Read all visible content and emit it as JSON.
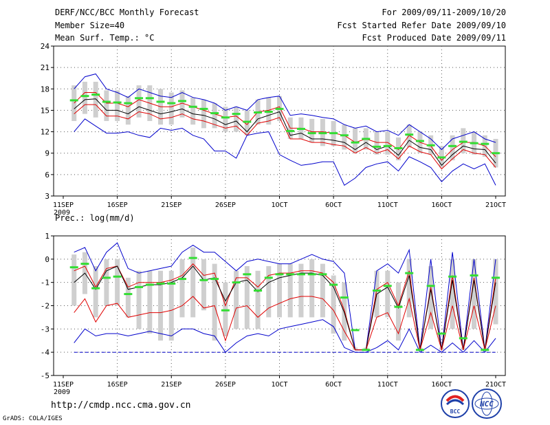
{
  "header": {
    "title": "DERF/NCC/BCC Monthly Forecast",
    "member_size": "Member Size=40",
    "variable1": "Mean Surf. Temp.: °C",
    "period": "For 2009/09/11-2009/10/20",
    "started": "Fcst Started Refer Date 2009/09/10",
    "produced": "Fcst Produced Date 2009/09/11"
  },
  "footer": {
    "url": "http://cmdp.ncc.cma.gov.cn",
    "credit": "GrADS: COLA/IGES",
    "logo_bcc": "BCC",
    "logo_ncc": "NCC"
  },
  "colors": {
    "box": "#cfcfcf",
    "mean": "#000000",
    "spread": "#e00000",
    "extreme": "#0000cc",
    "median": "#33dd33"
  },
  "chart_data": [
    {
      "type": "line",
      "title": "Mean Surf. Temp.: °C",
      "xlabel": "",
      "ylabel": "°C",
      "xlim": [
        0,
        40
      ],
      "ylim": [
        3,
        24
      ],
      "yticks": [
        3,
        6,
        9,
        12,
        15,
        18,
        21,
        24
      ],
      "x_ticks": [
        {
          "day": 0,
          "label": "11SEP",
          "sublabel": "2009"
        },
        {
          "day": 5,
          "label": "16SEP"
        },
        {
          "day": 10,
          "label": "21SEP"
        },
        {
          "day": 15,
          "label": "26SEP"
        },
        {
          "day": 20,
          "label": "1OCT"
        },
        {
          "day": 25,
          "label": "6OCT"
        },
        {
          "day": 30,
          "label": "11OCT"
        },
        {
          "day": 35,
          "label": "16OCT"
        },
        {
          "day": 40,
          "label": "21OCT"
        }
      ],
      "series": [
        {
          "name": "max",
          "values": [
            18.0,
            19.7,
            20.1,
            18.0,
            17.5,
            16.8,
            18.0,
            17.5,
            17.0,
            16.8,
            17.5,
            16.8,
            16.5,
            16.0,
            15.0,
            15.5,
            15.0,
            16.5,
            16.8,
            17.0,
            14.3,
            14.5,
            14.3,
            14.0,
            13.8,
            13.0,
            12.5,
            12.8,
            12.0,
            12.2,
            11.5,
            13.0,
            12.0,
            11.0,
            9.5,
            11.0,
            11.5,
            12.0,
            11.0,
            10.5
          ]
        },
        {
          "name": "upper",
          "values": [
            16.0,
            17.5,
            17.5,
            16.0,
            16.0,
            15.5,
            16.5,
            16.0,
            15.5,
            15.5,
            16.0,
            15.5,
            15.0,
            14.5,
            14.0,
            14.2,
            13.0,
            14.8,
            15.0,
            15.5,
            12.5,
            12.5,
            12.0,
            12.0,
            11.8,
            11.5,
            10.5,
            11.0,
            10.5,
            10.5,
            9.5,
            11.5,
            10.5,
            10.0,
            8.0,
            9.5,
            10.5,
            10.5,
            10.0,
            8.5
          ]
        },
        {
          "name": "mean",
          "values": [
            15.2,
            16.5,
            16.6,
            15.0,
            15.0,
            14.5,
            15.5,
            15.0,
            14.5,
            14.8,
            15.2,
            14.5,
            14.3,
            13.8,
            13.0,
            13.5,
            12.0,
            13.8,
            14.3,
            14.8,
            11.5,
            11.8,
            11.0,
            11.0,
            10.8,
            10.5,
            9.5,
            10.5,
            9.5,
            10.0,
            8.7,
            10.8,
            9.8,
            9.5,
            7.3,
            8.8,
            10.0,
            9.6,
            9.5,
            7.6
          ]
        },
        {
          "name": "lower",
          "values": [
            14.5,
            15.8,
            15.8,
            14.2,
            14.2,
            13.8,
            14.8,
            14.5,
            13.8,
            14.0,
            14.5,
            13.8,
            13.5,
            13.0,
            12.5,
            12.8,
            11.5,
            13.2,
            13.5,
            14.0,
            11.0,
            11.0,
            10.5,
            10.5,
            10.2,
            10.0,
            9.0,
            9.8,
            9.0,
            9.5,
            8.2,
            10.0,
            9.2,
            8.8,
            6.8,
            8.2,
            9.5,
            9.0,
            8.8,
            7.0
          ]
        },
        {
          "name": "min",
          "values": [
            12.0,
            13.8,
            12.8,
            11.8,
            11.8,
            12.0,
            11.5,
            11.2,
            12.5,
            12.2,
            12.5,
            11.5,
            11.0,
            9.3,
            9.3,
            8.3,
            11.5,
            11.8,
            12.0,
            8.8,
            8.0,
            7.3,
            7.5,
            7.8,
            7.8,
            4.5,
            5.5,
            7.0,
            7.5,
            7.8,
            6.5,
            8.5,
            7.8,
            7.0,
            5.0,
            6.5,
            7.5,
            6.8,
            7.5,
            4.5
          ]
        },
        {
          "name": "median",
          "values": [
            16.4,
            17.0,
            17.2,
            16.2,
            16.1,
            16.0,
            16.7,
            16.7,
            16.2,
            16.0,
            16.3,
            15.5,
            15.2,
            14.6,
            14.0,
            14.5,
            13.4,
            14.7,
            14.8,
            15.2,
            12.1,
            12.4,
            11.8,
            11.8,
            11.8,
            11.5,
            10.5,
            11.0,
            9.9,
            10.0,
            9.7,
            11.6,
            10.7,
            10.1,
            8.4,
            10.0,
            10.6,
            10.4,
            10.3,
            9.0
          ]
        }
      ],
      "box": {
        "low": [
          13.5,
          14.5,
          14.0,
          13.5,
          13.5,
          13.0,
          14.0,
          13.5,
          13.0,
          13.0,
          14.0,
          13.0,
          12.5,
          12.5,
          12.0,
          12.0,
          11.5,
          13.0,
          13.0,
          13.5,
          11.0,
          11.0,
          10.5,
          10.0,
          10.0,
          9.5,
          9.0,
          9.5,
          8.8,
          8.8,
          8.0,
          9.8,
          9.0,
          8.8,
          7.0,
          8.0,
          9.0,
          8.8,
          8.5,
          7.0
        ],
        "high": [
          18.5,
          19.0,
          19.0,
          17.8,
          17.8,
          17.0,
          18.5,
          18.5,
          18.0,
          17.5,
          17.8,
          16.8,
          16.5,
          16.0,
          15.5,
          15.5,
          15.0,
          16.5,
          16.8,
          17.0,
          14.0,
          14.0,
          13.8,
          13.8,
          13.5,
          13.0,
          12.5,
          12.5,
          12.0,
          12.0,
          11.2,
          13.0,
          12.0,
          11.5,
          10.0,
          11.5,
          12.5,
          12.0,
          11.5,
          11.0
        ]
      }
    },
    {
      "type": "line",
      "title": "Prec.: log(mm/d)",
      "xlabel": "",
      "ylabel": "log(mm/d)",
      "xlim": [
        0,
        40
      ],
      "ylim": [
        -5,
        1
      ],
      "yticks": [
        -5,
        -4,
        -3,
        -2,
        -1,
        0,
        1
      ],
      "x_ticks": [
        {
          "day": 0,
          "label": "11SEP",
          "sublabel": "2009"
        },
        {
          "day": 5,
          "label": "16SEP"
        },
        {
          "day": 10,
          "label": "21SEP"
        },
        {
          "day": 15,
          "label": "26SEP"
        },
        {
          "day": 20,
          "label": "1OCT"
        },
        {
          "day": 25,
          "label": "6OCT"
        },
        {
          "day": 30,
          "label": "11OCT"
        },
        {
          "day": 35,
          "label": "16OCT"
        },
        {
          "day": 40,
          "label": "21OCT"
        }
      ],
      "series": [
        {
          "name": "max",
          "values": [
            0.3,
            0.5,
            -0.5,
            0.3,
            0.7,
            -0.4,
            -0.6,
            -0.5,
            -0.4,
            -0.3,
            0.3,
            0.6,
            0.3,
            0.3,
            -0.1,
            -0.5,
            -0.1,
            0.0,
            -0.1,
            -0.2,
            -0.2,
            0.0,
            0.2,
            0.0,
            -0.1,
            -0.6,
            -3.9,
            -3.9,
            -0.5,
            -0.2,
            -0.6,
            0.4,
            -3.9,
            0.0,
            -3.9,
            0.3,
            -3.9,
            0.0,
            -3.9,
            0.0
          ]
        },
        {
          "name": "upper",
          "values": [
            -0.5,
            -0.3,
            -1.2,
            -0.4,
            -0.3,
            -1.2,
            -1.0,
            -1.0,
            -1.0,
            -0.9,
            -0.7,
            -0.2,
            -0.7,
            -0.6,
            -2.0,
            -0.8,
            -0.8,
            -1.2,
            -0.7,
            -0.6,
            -0.6,
            -0.5,
            -0.5,
            -0.6,
            -1.0,
            -2.2,
            -3.9,
            -3.9,
            -1.3,
            -1.0,
            -2.0,
            -0.5,
            -3.9,
            -1.2,
            -3.9,
            -0.7,
            -3.9,
            -0.8,
            -3.9,
            -0.8
          ]
        },
        {
          "name": "mean",
          "values": [
            -1.0,
            -0.6,
            -1.3,
            -0.5,
            -0.3,
            -1.3,
            -1.2,
            -1.1,
            -1.1,
            -1.0,
            -0.8,
            -0.3,
            -0.9,
            -0.8,
            -1.8,
            -1.0,
            -0.9,
            -1.4,
            -1.0,
            -0.8,
            -0.7,
            -0.6,
            -0.6,
            -0.7,
            -1.2,
            -2.3,
            -3.9,
            -3.9,
            -1.5,
            -1.2,
            -2.1,
            -0.7,
            -3.9,
            -1.3,
            -3.9,
            -0.9,
            -3.9,
            -0.9,
            -3.9,
            -1.0
          ]
        },
        {
          "name": "lower",
          "values": [
            -2.3,
            -1.7,
            -2.7,
            -2.0,
            -1.9,
            -2.5,
            -2.4,
            -2.3,
            -2.3,
            -2.2,
            -2.0,
            -1.6,
            -2.1,
            -2.0,
            -3.5,
            -2.1,
            -2.0,
            -2.5,
            -2.1,
            -1.9,
            -1.7,
            -1.6,
            -1.6,
            -1.7,
            -2.2,
            -3.1,
            -3.9,
            -3.9,
            -2.5,
            -2.3,
            -3.2,
            -1.7,
            -3.9,
            -2.3,
            -3.9,
            -2.0,
            -3.9,
            -2.0,
            -3.9,
            -2.0
          ]
        },
        {
          "name": "min",
          "values": [
            -3.6,
            -3.0,
            -3.3,
            -3.2,
            -3.2,
            -3.3,
            -3.2,
            -3.1,
            -3.2,
            -3.3,
            -3.0,
            -3.0,
            -3.2,
            -3.3,
            -4.0,
            -3.6,
            -3.3,
            -3.2,
            -3.3,
            -3.0,
            -2.9,
            -2.8,
            -2.7,
            -2.6,
            -2.9,
            -3.8,
            -4.0,
            -4.0,
            -3.8,
            -3.5,
            -3.9,
            -3.0,
            -4.0,
            -3.7,
            -4.0,
            -3.6,
            -4.0,
            -3.5,
            -4.0,
            -3.4
          ]
        },
        {
          "name": "median",
          "values": [
            -0.35,
            -0.2,
            -1.25,
            -0.8,
            -0.75,
            -1.5,
            -1.2,
            -1.1,
            -1.05,
            -1.05,
            -0.85,
            0.05,
            -0.9,
            -0.85,
            -2.2,
            -1.0,
            -0.65,
            -1.35,
            -0.8,
            -0.65,
            -0.65,
            -0.65,
            -0.65,
            -0.65,
            -1.1,
            -1.65,
            -3.05,
            -3.9,
            -1.35,
            -1.15,
            -2.05,
            -0.6,
            -3.9,
            -1.15,
            -3.2,
            -0.75,
            -3.4,
            -0.7,
            -3.9,
            -0.8
          ]
        },
        {
          "name": "floor",
          "values": [
            -4,
            -4,
            -4,
            -4,
            -4,
            -4,
            -4,
            -4,
            -4,
            -4,
            -4,
            -4,
            -4,
            -4,
            -4,
            -4,
            -4,
            -4,
            -4,
            -4,
            -4,
            -4,
            -4,
            -4,
            -4,
            -4,
            -4,
            -4,
            -4,
            -4,
            -4,
            -4,
            -4,
            -4,
            -4,
            -4,
            -4,
            -4,
            -4,
            -4
          ]
        }
      ],
      "box": {
        "low": [
          -2.0,
          -1.5,
          -2.5,
          -2.0,
          -2.0,
          -2.5,
          -3.0,
          -3.2,
          -3.5,
          -3.5,
          -2.5,
          -2.5,
          -2.2,
          -3.5,
          -3.3,
          -3.0,
          -3.0,
          -3.0,
          -2.5,
          -2.5,
          -2.5,
          -2.5,
          -2.5,
          -2.5,
          -3.2,
          -3.5,
          -3.9,
          -3.9,
          -2.5,
          -2.5,
          -3.5,
          -2.5,
          -3.9,
          -3.0,
          -3.9,
          -3.0,
          -3.9,
          -3.0,
          -3.9,
          -2.8
        ],
        "high": [
          0.2,
          0.3,
          -0.3,
          0.0,
          0.0,
          -0.8,
          -0.5,
          -0.5,
          -0.5,
          -0.5,
          0.0,
          0.5,
          0.0,
          -0.2,
          -1.0,
          -0.5,
          -0.3,
          -0.5,
          -0.3,
          -0.2,
          -0.2,
          -0.2,
          0.0,
          -0.2,
          -0.7,
          -1.0,
          -3.8,
          -3.8,
          -0.5,
          -0.5,
          -1.0,
          0.0,
          -3.8,
          -0.3,
          -3.8,
          0.0,
          -3.8,
          0.0,
          -3.8,
          0.0
        ]
      }
    }
  ]
}
